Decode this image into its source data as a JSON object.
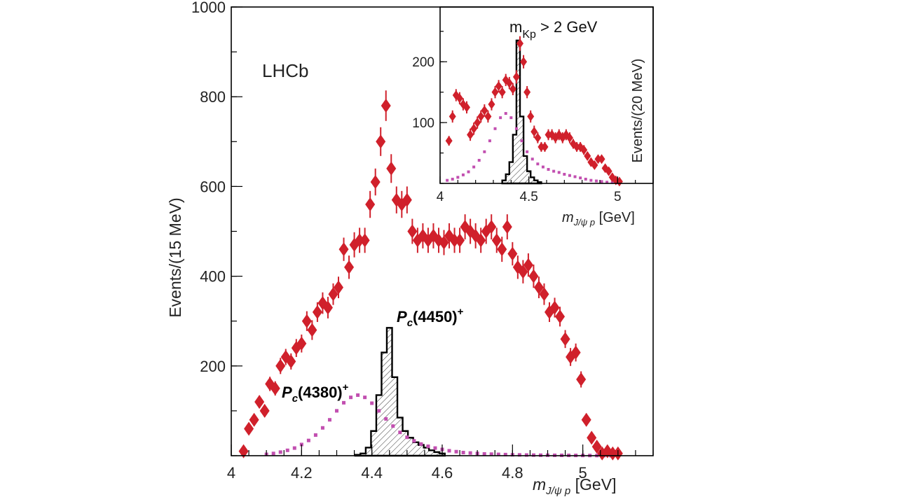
{
  "experiment_label": "LHCb",
  "chart_data": [
    {
      "type": "scatter",
      "title": "",
      "xlabel": "m_{J/ψ p} [GeV]",
      "ylabel": "Events/(15 MeV)",
      "xlim": [
        4.0,
        5.2
      ],
      "ylim": [
        0,
        1000
      ],
      "xticks": [
        4,
        4.2,
        4.4,
        4.6,
        4.8,
        5
      ],
      "xtick_labels": [
        "4",
        "4.2",
        "4.4",
        "4.6",
        "4.8",
        "5"
      ],
      "yticks": [
        200,
        400,
        600,
        800,
        1000
      ],
      "ytick_labels": [
        "200",
        "400",
        "600",
        "800",
        "1000"
      ],
      "annotations": {
        "pc4450": {
          "name": "P",
          "sub": "c",
          "mass": "(4450)",
          "charge": "+"
        },
        "pc4380": {
          "name": "P",
          "sub": "c",
          "mass": "(4380)",
          "charge": "+"
        }
      },
      "series": [
        {
          "kind": "data",
          "color": "#d0202b",
          "x": [
            4.035,
            4.05,
            4.065,
            4.08,
            4.095,
            4.11,
            4.125,
            4.14,
            4.155,
            4.17,
            4.185,
            4.2,
            4.215,
            4.23,
            4.245,
            4.26,
            4.275,
            4.29,
            4.305,
            4.32,
            4.335,
            4.35,
            4.365,
            4.38,
            4.395,
            4.41,
            4.425,
            4.44,
            4.455,
            4.47,
            4.485,
            4.5,
            4.515,
            4.53,
            4.545,
            4.56,
            4.575,
            4.59,
            4.605,
            4.62,
            4.635,
            4.65,
            4.665,
            4.68,
            4.695,
            4.71,
            4.725,
            4.74,
            4.755,
            4.77,
            4.785,
            4.8,
            4.815,
            4.83,
            4.845,
            4.86,
            4.875,
            4.89,
            4.905,
            4.92,
            4.935,
            4.95,
            4.965,
            4.98,
            4.995,
            5.01,
            5.025,
            5.04,
            5.055,
            5.07,
            5.085,
            5.1
          ],
          "y": [
            10,
            60,
            80,
            120,
            100,
            160,
            150,
            200,
            220,
            210,
            240,
            250,
            300,
            280,
            320,
            340,
            330,
            360,
            375,
            460,
            420,
            470,
            480,
            480,
            560,
            610,
            700,
            780,
            640,
            570,
            560,
            570,
            500,
            480,
            490,
            480,
            490,
            480,
            475,
            490,
            480,
            480,
            510,
            500,
            490,
            480,
            500,
            510,
            480,
            460,
            510,
            450,
            420,
            410,
            425,
            400,
            375,
            360,
            320,
            330,
            310,
            260,
            220,
            230,
            170,
            80,
            40,
            20,
            5,
            10,
            5,
            5
          ],
          "err": [
            6,
            10,
            12,
            14,
            14,
            16,
            16,
            18,
            18,
            18,
            20,
            20,
            22,
            22,
            22,
            24,
            24,
            24,
            24,
            26,
            26,
            28,
            28,
            28,
            30,
            30,
            32,
            34,
            32,
            30,
            30,
            30,
            28,
            28,
            28,
            28,
            28,
            28,
            28,
            28,
            28,
            28,
            28,
            28,
            28,
            28,
            28,
            28,
            28,
            28,
            28,
            26,
            26,
            26,
            26,
            26,
            24,
            24,
            22,
            22,
            22,
            20,
            20,
            20,
            18,
            14,
            10,
            8,
            6,
            6,
            5,
            5
          ]
        },
        {
          "kind": "histogram",
          "name": "P_c(4450)+",
          "x": [
            4.36,
            4.375,
            4.39,
            4.405,
            4.42,
            4.435,
            4.45,
            4.465,
            4.48,
            4.495,
            4.51,
            4.525,
            4.54,
            4.555,
            4.57,
            4.585,
            4.6
          ],
          "y": [
            2,
            5,
            18,
            55,
            135,
            230,
            285,
            175,
            85,
            55,
            40,
            30,
            24,
            18,
            12,
            8,
            5
          ]
        },
        {
          "kind": "model",
          "name": "P_c(4380)+",
          "color": "#c24fb0",
          "x": [
            4.1,
            4.12,
            4.14,
            4.16,
            4.18,
            4.2,
            4.22,
            4.24,
            4.26,
            4.28,
            4.3,
            4.32,
            4.34,
            4.36,
            4.38,
            4.4,
            4.42,
            4.44,
            4.46,
            4.48,
            4.5,
            4.52,
            4.54,
            4.56,
            4.58,
            4.6,
            4.62,
            4.64,
            4.66,
            4.68,
            4.7,
            4.72,
            4.74,
            4.76,
            4.78,
            4.8,
            4.82,
            4.84,
            4.86,
            4.88,
            4.9,
            4.92,
            4.94,
            4.96,
            4.98,
            5.0,
            5.02,
            5.04,
            5.06,
            5.08
          ],
          "y": [
            3,
            5,
            8,
            12,
            17,
            25,
            34,
            46,
            62,
            80,
            100,
            118,
            130,
            135,
            130,
            117,
            100,
            82,
            66,
            52,
            41,
            33,
            26,
            21,
            17,
            14,
            11,
            9,
            7,
            6,
            5,
            4,
            3.5,
            3,
            2.5,
            2,
            1.8,
            1.5,
            1.3,
            1.1,
            1,
            0.9,
            0.8,
            0.7,
            0.6,
            0.5,
            0.4,
            0.3,
            0.2,
            0.1
          ]
        }
      ]
    },
    {
      "type": "scatter",
      "title": "m_{Kp} > 2 GeV",
      "xlabel": "m_{J/ψ p} [GeV]",
      "ylabel": "Events/(20 MeV)",
      "xlim": [
        4.0,
        5.2
      ],
      "ylim": [
        0,
        290
      ],
      "xticks": [
        4,
        4.5,
        5
      ],
      "xtick_labels": [
        "4",
        "4.5",
        "5"
      ],
      "yticks": [
        100,
        200
      ],
      "ytick_labels": [
        "100",
        "200"
      ],
      "series": [
        {
          "kind": "data",
          "color": "#d0202b",
          "x": [
            4.05,
            4.07,
            4.09,
            4.11,
            4.13,
            4.15,
            4.17,
            4.19,
            4.21,
            4.23,
            4.25,
            4.27,
            4.29,
            4.31,
            4.33,
            4.35,
            4.37,
            4.39,
            4.41,
            4.43,
            4.45,
            4.47,
            4.49,
            4.51,
            4.53,
            4.55,
            4.57,
            4.59,
            4.61,
            4.63,
            4.65,
            4.67,
            4.69,
            4.71,
            4.73,
            4.75,
            4.77,
            4.79,
            4.81,
            4.83,
            4.85,
            4.87,
            4.89,
            4.91,
            4.93,
            4.95,
            4.97,
            4.99,
            5.01
          ],
          "y": [
            70,
            110,
            145,
            140,
            130,
            125,
            80,
            90,
            100,
            110,
            120,
            110,
            130,
            150,
            160,
            150,
            170,
            165,
            155,
            175,
            230,
            200,
            150,
            110,
            85,
            75,
            60,
            60,
            80,
            80,
            75,
            80,
            75,
            80,
            75,
            65,
            60,
            60,
            55,
            45,
            35,
            30,
            40,
            40,
            25,
            20,
            10,
            5,
            3
          ],
          "err": [
            8,
            10,
            10,
            10,
            10,
            10,
            10,
            10,
            10,
            10,
            10,
            10,
            10,
            10,
            10,
            10,
            10,
            10,
            10,
            11,
            12,
            11,
            10,
            10,
            10,
            9,
            8,
            8,
            9,
            9,
            9,
            9,
            9,
            9,
            9,
            8,
            8,
            8,
            8,
            7,
            7,
            6,
            6,
            6,
            5,
            5,
            4,
            3,
            2
          ]
        },
        {
          "kind": "histogram",
          "name": "P_c(4450)+",
          "x": [
            4.36,
            4.38,
            4.4,
            4.42,
            4.44,
            4.46,
            4.48,
            4.5,
            4.52,
            4.54,
            4.56
          ],
          "y": [
            5,
            15,
            35,
            80,
            235,
            110,
            45,
            20,
            10,
            5,
            2
          ]
        },
        {
          "kind": "model",
          "name": "P_c(4380)+",
          "color": "#c24fb0",
          "x": [
            4.04,
            4.07,
            4.1,
            4.13,
            4.16,
            4.19,
            4.22,
            4.25,
            4.28,
            4.31,
            4.34,
            4.37,
            4.4,
            4.43,
            4.46,
            4.49,
            4.52,
            4.55,
            4.58,
            4.61,
            4.64,
            4.67,
            4.7,
            4.73,
            4.76,
            4.79,
            4.82,
            4.85,
            4.88,
            4.91,
            4.94,
            4.97,
            5.0
          ],
          "y": [
            5,
            7,
            10,
            14,
            19,
            27,
            38,
            52,
            70,
            90,
            108,
            115,
            108,
            90,
            70,
            52,
            40,
            32,
            27,
            23,
            20,
            18,
            15,
            13,
            11,
            9,
            7,
            5,
            4,
            3,
            2,
            1.5,
            1
          ]
        }
      ]
    }
  ]
}
